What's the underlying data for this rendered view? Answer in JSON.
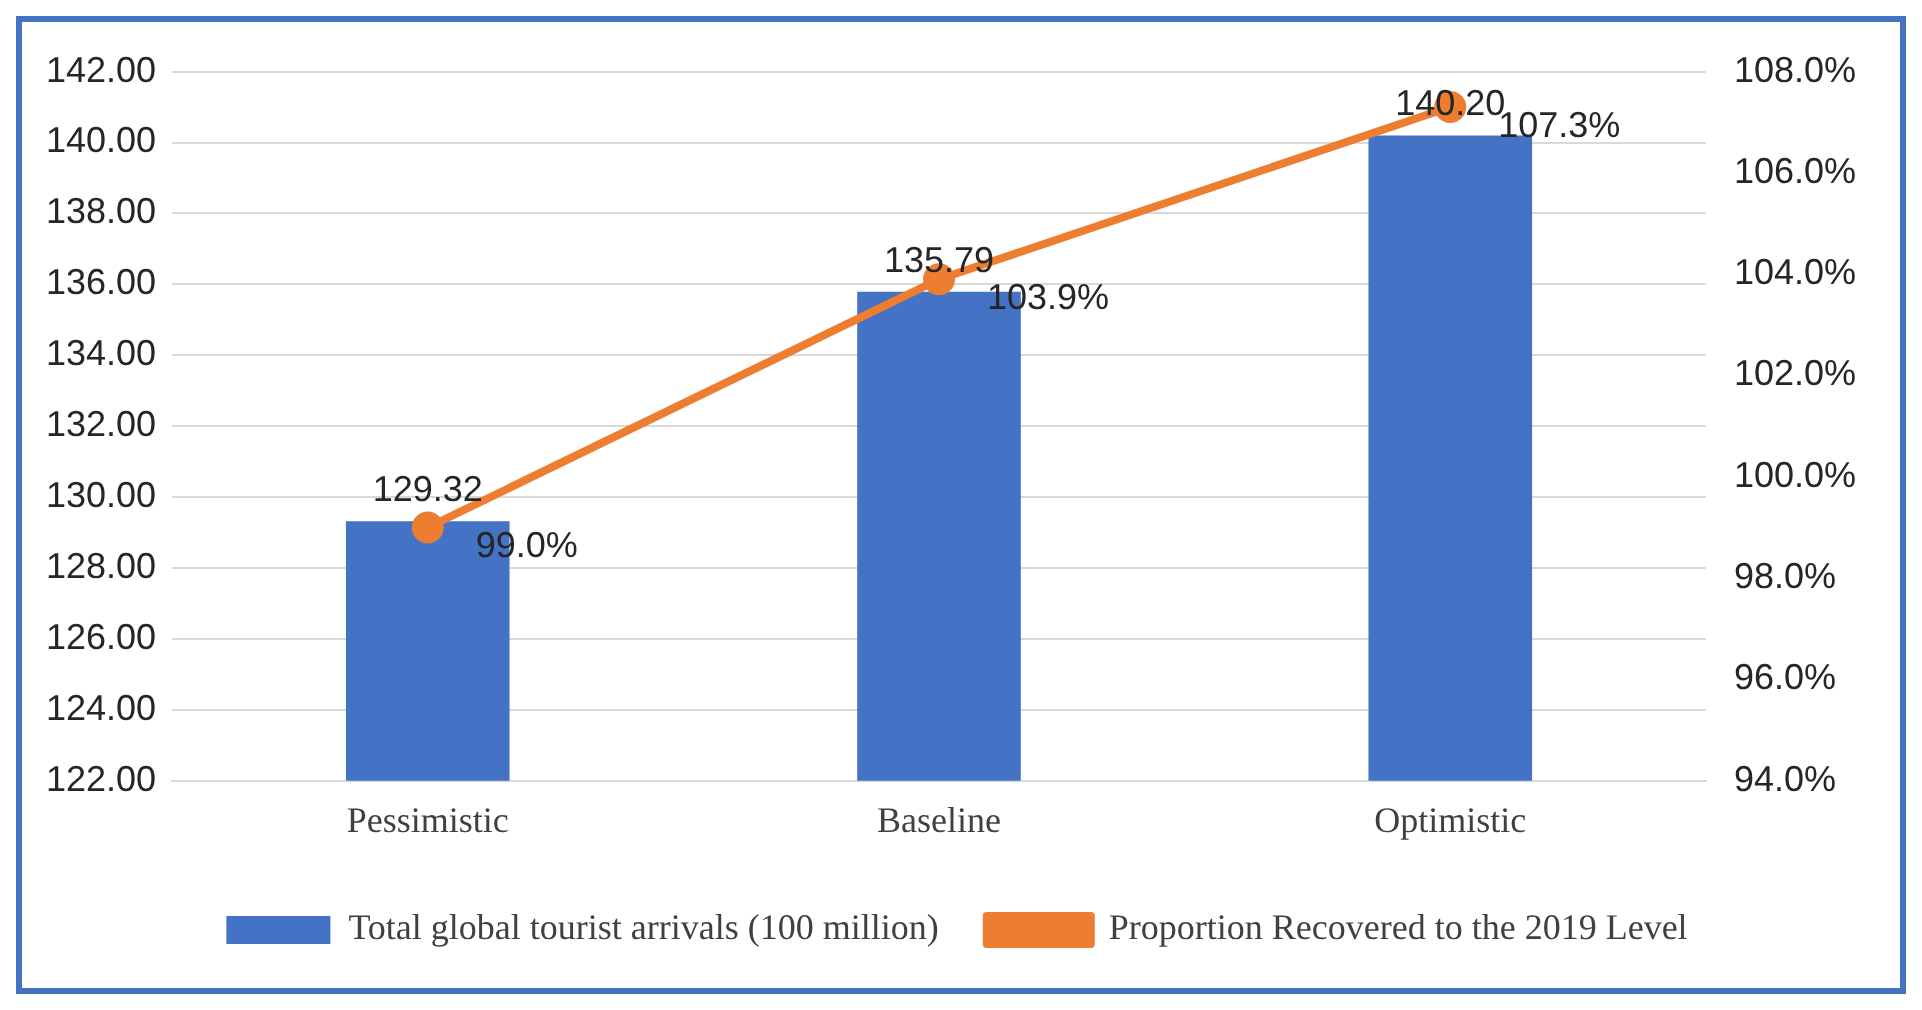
{
  "chart_data": {
    "type": "bar",
    "categories": [
      "Pessimistic",
      "Baseline",
      "Optimistic"
    ],
    "series": [
      {
        "name": "Total global tourist arrivals (100 million)",
        "color": "#4472c4",
        "values": [
          129.32,
          135.79,
          140.2
        ],
        "value_labels": [
          "129.32",
          "135.79",
          "140.20"
        ]
      },
      {
        "name": "Proportion Recovered to the 2019 Level",
        "type": "line",
        "axis": "y2",
        "color": "#ed7d31",
        "values": [
          99.0,
          103.9,
          107.3
        ],
        "value_labels": [
          "99.0%",
          "103.9%",
          "107.3%"
        ]
      }
    ],
    "ylim": [
      122,
      142
    ],
    "yticks": [
      {
        "value": 122,
        "label": "122.00"
      },
      {
        "value": 124,
        "label": "124.00"
      },
      {
        "value": 126,
        "label": "126.00"
      },
      {
        "value": 128,
        "label": "128.00"
      },
      {
        "value": 130,
        "label": "130.00"
      },
      {
        "value": 132,
        "label": "132.00"
      },
      {
        "value": 134,
        "label": "134.00"
      },
      {
        "value": 136,
        "label": "136.00"
      },
      {
        "value": 138,
        "label": "138.00"
      },
      {
        "value": 140,
        "label": "140.00"
      },
      {
        "value": 142,
        "label": "142.00"
      }
    ],
    "y2lim": [
      94,
      108
    ],
    "y2ticks": [
      {
        "value": 94,
        "label": "94.0%"
      },
      {
        "value": 96,
        "label": "96.0%"
      },
      {
        "value": 98,
        "label": "98.0%"
      },
      {
        "value": 100,
        "label": "100.0%"
      },
      {
        "value": 102,
        "label": "102.0%"
      },
      {
        "value": 104,
        "label": "104.0%"
      },
      {
        "value": 106,
        "label": "106.0%"
      },
      {
        "value": 108,
        "label": "108.0%"
      }
    ],
    "grid": "y",
    "legend": "bottom",
    "marker": "circle",
    "line_style": "solid"
  }
}
